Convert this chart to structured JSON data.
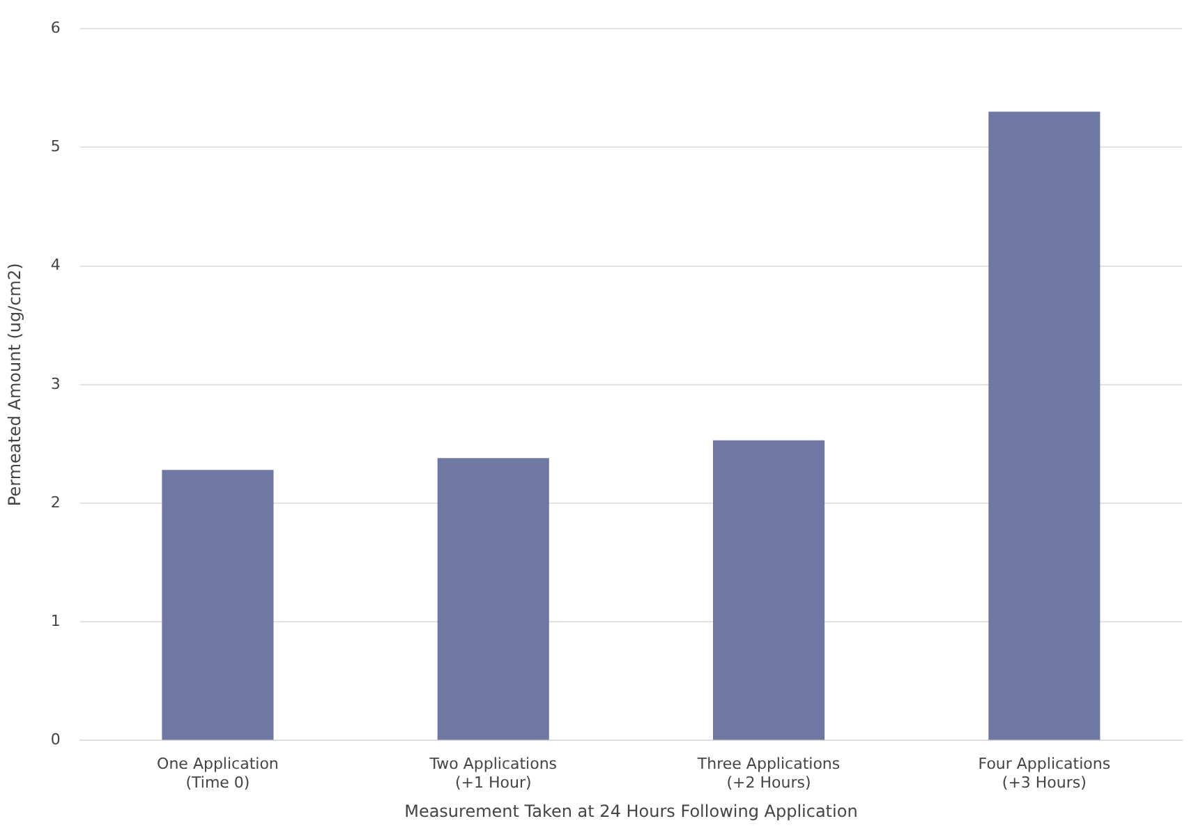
{
  "chart_data": {
    "type": "bar",
    "xlabel": "Measurement Taken at 24 Hours Following Application",
    "ylabel": "Permeated Amount (ug/cm2)",
    "categories": [
      [
        "One Application",
        "(Time 0)"
      ],
      [
        "Two Applications",
        "(+1 Hour)"
      ],
      [
        "Three Applications",
        "(+2 Hours)"
      ],
      [
        "Four Applications",
        "(+3 Hours)"
      ]
    ],
    "values": [
      2.28,
      2.38,
      2.53,
      5.3
    ],
    "color": "#6f78a3",
    "ylim": [
      0,
      6
    ],
    "yticks": [
      0,
      1,
      2,
      3,
      4,
      5,
      6
    ],
    "grid": "y",
    "legend": false
  }
}
